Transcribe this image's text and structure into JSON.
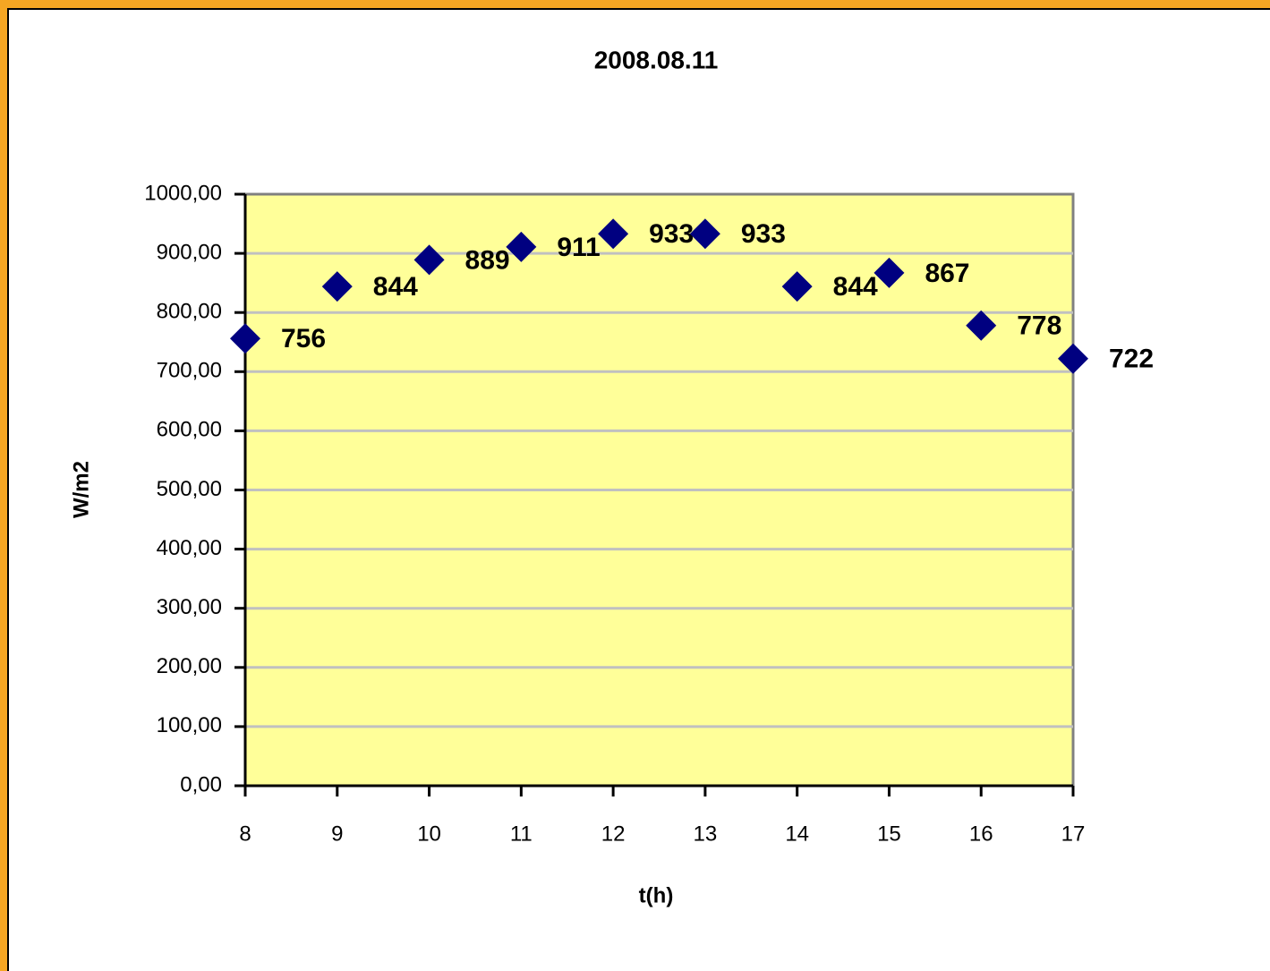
{
  "chart_data": {
    "type": "scatter",
    "title": "2008.08.11",
    "x_label": "t(h)",
    "y_label": "W/m2",
    "x": [
      8,
      9,
      10,
      11,
      12,
      13,
      14,
      15,
      16,
      17
    ],
    "values": [
      756,
      844,
      889,
      911,
      933,
      933,
      844,
      867,
      778,
      722
    ],
    "color": "#000080",
    "plot_background": "#ffff99",
    "xlim": [
      8,
      17
    ],
    "xticks": [
      8,
      9,
      10,
      11,
      12,
      13,
      14,
      15,
      16,
      17
    ],
    "ylim": [
      0,
      1000
    ],
    "yticks": [
      {
        "value": 0,
        "label": "0,00"
      },
      {
        "value": 100,
        "label": "100,00"
      },
      {
        "value": 200,
        "label": "200,00"
      },
      {
        "value": 300,
        "label": "300,00"
      },
      {
        "value": 400,
        "label": "400,00"
      },
      {
        "value": 500,
        "label": "500,00"
      },
      {
        "value": 600,
        "label": "600,00"
      },
      {
        "value": 700,
        "label": "700,00"
      },
      {
        "value": 800,
        "label": "800,00"
      },
      {
        "value": 900,
        "label": "900,00"
      },
      {
        "value": 1000,
        "label": "1000,00"
      }
    ],
    "grid": true
  }
}
